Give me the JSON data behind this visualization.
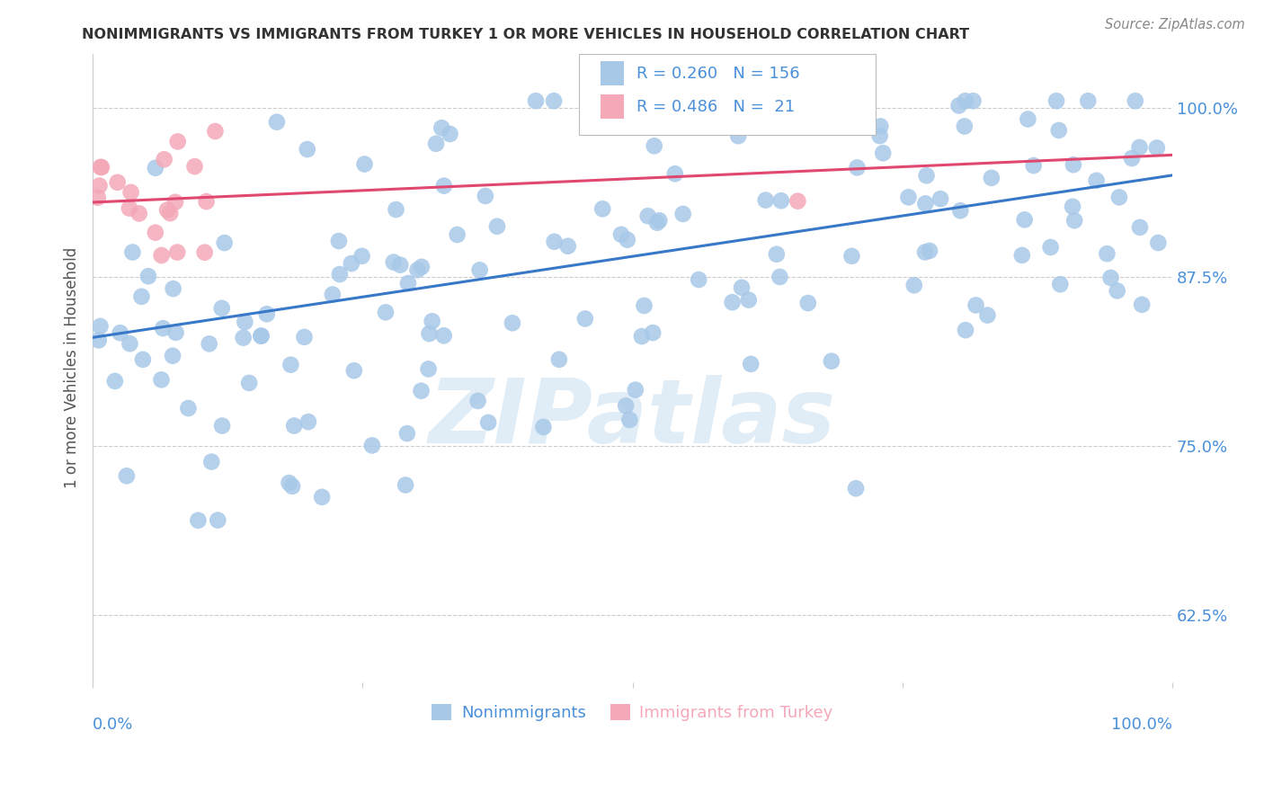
{
  "title": "NONIMMIGRANTS VS IMMIGRANTS FROM TURKEY 1 OR MORE VEHICLES IN HOUSEHOLD CORRELATION CHART",
  "source": "Source: ZipAtlas.com",
  "ylabel": "1 or more Vehicles in Household",
  "ytick_labels": [
    "62.5%",
    "75.0%",
    "87.5%",
    "100.0%"
  ],
  "ytick_values": [
    0.625,
    0.75,
    0.875,
    1.0
  ],
  "xlim": [
    0.0,
    1.0
  ],
  "ylim": [
    0.575,
    1.04
  ],
  "legend_label_blue": "Nonimmigrants",
  "legend_label_pink": "Immigrants from Turkey",
  "R_blue": 0.26,
  "N_blue": 156,
  "R_pink": 0.486,
  "N_pink": 21,
  "blue_color": "#a8c8e8",
  "pink_color": "#f4a8b8",
  "blue_line_color": "#3878c8",
  "pink_line_color": "#e04870",
  "axis_label_color": "#4a90d9",
  "watermark": "ZIPatlas",
  "blue_line_x0": 0.0,
  "blue_line_y0": 0.83,
  "blue_line_x1": 1.0,
  "blue_line_y1": 0.95,
  "pink_line_x0": 0.0,
  "pink_line_y0": 0.93,
  "pink_line_x1": 1.0,
  "pink_line_y1": 0.965
}
